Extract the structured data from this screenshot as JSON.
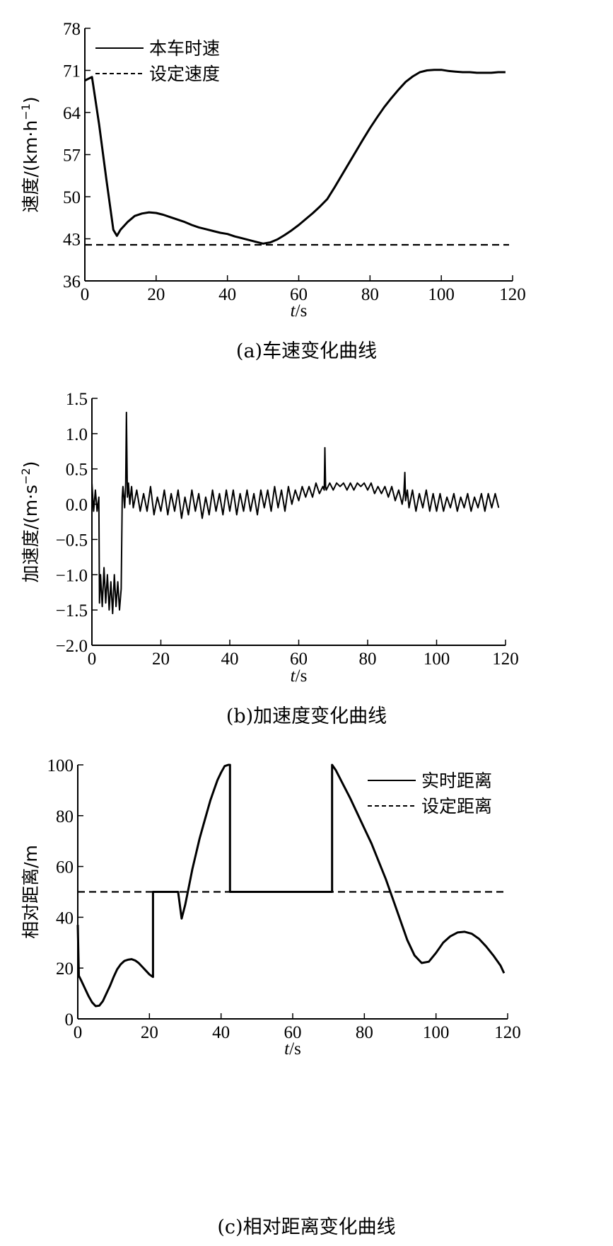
{
  "panels": [
    {
      "caption": "(a)车速变化曲线",
      "chart_data": {
        "type": "line",
        "xlabel_italic": "t",
        "xlabel_unit": "/s",
        "ylabel_prefix": "速度/(km·h",
        "ylabel_sup": "−1",
        "ylabel_suffix": ")",
        "xlim": [
          0,
          120
        ],
        "ylim": [
          36,
          78
        ],
        "xticks": [
          0,
          20,
          40,
          60,
          80,
          100,
          120
        ],
        "yticks": [
          36,
          43,
          50,
          57,
          64,
          71,
          78
        ],
        "grid": false,
        "legend_position": "top-left",
        "series": [
          {
            "name": "本车时速",
            "style": "solid",
            "x": [
              0,
              2,
              4,
              6,
              8,
              9,
              10,
              12,
              14,
              16,
              18,
              20,
              22,
              24,
              26,
              28,
              30,
              32,
              34,
              36,
              38,
              40,
              42,
              44,
              46,
              48,
              50,
              52,
              54,
              56,
              58,
              60,
              62,
              64,
              66,
              68,
              70,
              72,
              74,
              76,
              78,
              80,
              82,
              84,
              86,
              88,
              90,
              92,
              94,
              96,
              98,
              100,
              102,
              104,
              106,
              108,
              110,
              112,
              114,
              116,
              118
            ],
            "y": [
              69.3,
              69.9,
              62.0,
              53.0,
              44.5,
              43.5,
              44.5,
              45.8,
              46.8,
              47.2,
              47.4,
              47.3,
              47.0,
              46.6,
              46.2,
              45.8,
              45.3,
              44.9,
              44.6,
              44.3,
              44.0,
              43.8,
              43.4,
              43.1,
              42.8,
              42.5,
              42.2,
              42.4,
              42.9,
              43.6,
              44.4,
              45.3,
              46.3,
              47.3,
              48.4,
              49.6,
              51.5,
              53.5,
              55.5,
              57.5,
              59.5,
              61.4,
              63.2,
              64.9,
              66.4,
              67.8,
              69.1,
              70.0,
              70.7,
              71.0,
              71.1,
              71.1,
              70.9,
              70.8,
              70.7,
              70.7,
              70.6,
              70.6,
              70.6,
              70.7,
              70.7
            ]
          },
          {
            "name": "设定速度",
            "style": "dashed",
            "x": [
              0,
              119
            ],
            "y": [
              42,
              42
            ]
          }
        ]
      }
    },
    {
      "caption": "(b)加速度变化曲线",
      "chart_data": {
        "type": "line",
        "xlabel_italic": "t",
        "xlabel_unit": "/s",
        "ylabel_prefix": "加速度/(m·s",
        "ylabel_sup": "−2",
        "ylabel_suffix": ")",
        "xlim": [
          0,
          120
        ],
        "ylim": [
          -2.0,
          1.5
        ],
        "xticks": [
          0,
          20,
          40,
          60,
          80,
          100,
          120
        ],
        "yticks": [
          "1.5",
          "1.0",
          "0.5",
          "0.0",
          "−0.5",
          "−1.0",
          "−1.5",
          "−2.0"
        ],
        "ytick_values": [
          1.5,
          1.0,
          0.5,
          0.0,
          -0.5,
          -1.0,
          -1.5,
          -2.0
        ],
        "grid": false,
        "series": [
          {
            "style": "solid",
            "x": [
              0,
              0.5,
              1,
              1.5,
              2,
              2.2,
              2.5,
              3,
              3.5,
              4,
              4.5,
              5,
              5.5,
              6,
              6.5,
              7,
              7.5,
              8,
              8.5,
              8.8,
              9,
              9.5,
              9.8,
              10,
              10.3,
              10.6,
              11,
              11.5,
              12,
              13,
              14,
              15,
              16,
              17,
              18,
              19,
              20,
              21,
              22,
              23,
              24,
              25,
              26,
              27,
              28,
              29,
              30,
              31,
              32,
              33,
              34,
              35,
              36,
              37,
              38,
              39,
              40,
              41,
              42,
              43,
              44,
              45,
              46,
              47,
              48,
              49,
              50,
              51,
              52,
              53,
              54,
              55,
              56,
              57,
              58,
              59,
              60,
              61,
              62,
              63,
              64,
              65,
              66,
              67,
              67.4,
              67.6,
              67.8,
              68,
              69,
              70,
              71,
              72,
              73,
              74,
              75,
              76,
              77,
              78,
              79,
              80,
              81,
              82,
              83,
              84,
              85,
              86,
              87,
              88,
              89,
              90,
              90.5,
              90.8,
              91,
              91.5,
              92,
              93,
              94,
              95,
              96,
              97,
              98,
              99,
              100,
              101,
              102,
              103,
              104,
              105,
              106,
              107,
              108,
              109,
              110,
              111,
              112,
              113,
              114,
              115,
              116,
              117,
              118
            ],
            "y": [
              0.3,
              -0.1,
              0.2,
              -0.1,
              0.1,
              -1.4,
              -1.0,
              -1.45,
              -0.9,
              -1.4,
              -1.0,
              -1.5,
              -1.1,
              -1.55,
              -1.0,
              -1.45,
              -1.1,
              -1.5,
              -1.2,
              0.1,
              0.25,
              -0.05,
              0.3,
              1.3,
              0.1,
              0.3,
              0.0,
              0.25,
              -0.05,
              0.2,
              -0.1,
              0.15,
              -0.1,
              0.25,
              -0.15,
              0.1,
              -0.1,
              0.2,
              -0.15,
              0.15,
              -0.1,
              0.2,
              -0.2,
              0.1,
              -0.15,
              0.2,
              -0.1,
              0.15,
              -0.2,
              0.1,
              -0.15,
              0.2,
              -0.1,
              0.15,
              -0.15,
              0.2,
              -0.1,
              0.2,
              -0.15,
              0.15,
              -0.1,
              0.2,
              -0.1,
              0.15,
              -0.15,
              0.2,
              -0.05,
              0.2,
              -0.1,
              0.25,
              -0.05,
              0.2,
              -0.1,
              0.25,
              0.0,
              0.2,
              0.05,
              0.25,
              0.1,
              0.25,
              0.1,
              0.3,
              0.15,
              0.25,
              0.2,
              0.8,
              0.25,
              0.2,
              0.3,
              0.2,
              0.3,
              0.25,
              0.3,
              0.2,
              0.3,
              0.2,
              0.3,
              0.25,
              0.3,
              0.2,
              0.3,
              0.15,
              0.25,
              0.15,
              0.25,
              0.1,
              0.25,
              0.05,
              0.2,
              0.0,
              0.15,
              0.45,
              0.05,
              0.2,
              -0.05,
              0.2,
              -0.1,
              0.15,
              -0.05,
              0.2,
              -0.1,
              0.15,
              -0.1,
              0.15,
              -0.1,
              0.1,
              -0.05,
              0.15,
              -0.1,
              0.1,
              -0.05,
              0.15,
              -0.1,
              0.1,
              -0.05,
              0.15,
              -0.1,
              0.15,
              -0.05,
              0.15,
              -0.05
            ]
          }
        ]
      }
    },
    {
      "caption": "(c)相对距离变化曲线",
      "chart_data": {
        "type": "line",
        "xlabel_italic": "t",
        "xlabel_unit": "/s",
        "ylabel": "相对距离/m",
        "xlim": [
          0,
          120
        ],
        "ylim": [
          0,
          100
        ],
        "xticks": [
          0,
          20,
          40,
          60,
          80,
          100,
          120
        ],
        "yticks": [
          0,
          20,
          40,
          60,
          80,
          100
        ],
        "grid": false,
        "legend_position": "top-right",
        "series": [
          {
            "name": "实时距离",
            "style": "solid",
            "x": [
              0,
              0.3,
              1,
              2,
              3,
              4,
              5,
              6,
              7,
              8,
              9,
              10,
              11,
              12,
              13,
              14,
              15,
              16,
              17,
              18,
              19,
              20,
              21,
              21,
              22,
              23,
              24,
              25,
              26,
              27,
              28,
              29,
              30,
              31,
              32,
              33,
              34,
              35,
              36,
              37,
              38,
              39,
              40,
              41,
              42,
              42.5,
              42.5,
              50,
              60,
              70,
              71,
              71,
              72,
              74,
              76,
              78,
              80,
              82,
              84,
              86,
              88,
              90,
              92,
              94,
              96,
              98,
              100,
              102,
              104,
              106,
              108,
              110,
              112,
              114,
              116,
              118,
              119
            ],
            "y": [
              37,
              17,
              15,
              12,
              9,
              6.5,
              5,
              5.2,
              7,
              10,
              13,
              16.5,
              19.5,
              21.5,
              22.8,
              23.3,
              23.5,
              23,
              22,
              20.5,
              19,
              17.5,
              16.5,
              50,
              50,
              50,
              50,
              50,
              50,
              50,
              50,
              39.5,
              45,
              52,
              59,
              65,
              71,
              76,
              81,
              86,
              90,
              94,
              97,
              99.5,
              100,
              100,
              50,
              50,
              50,
              50,
              50,
              100,
              98,
              92.5,
              87,
              81,
              75,
              69,
              62,
              55,
              47,
              39,
              31,
              25,
              22,
              22.5,
              26,
              30,
              32.5,
              34,
              34.3,
              33.5,
              31.5,
              28.5,
              25,
              21,
              18
            ]
          },
          {
            "name": "设定距离",
            "style": "dashed",
            "x": [
              0,
              119
            ],
            "y": [
              50,
              50
            ]
          }
        ]
      }
    }
  ]
}
